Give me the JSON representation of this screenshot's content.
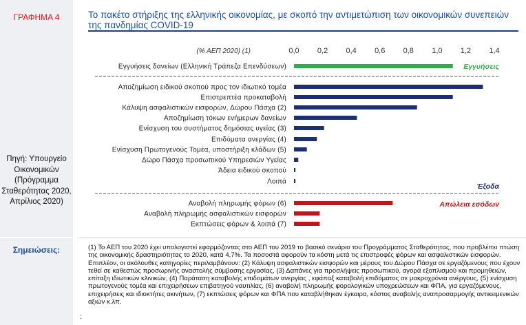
{
  "figure_label": "ΓΡΑΦΗΜΑ 4",
  "title": "Το πακέτο στήριξης της ελληνικής οικονομίας, με σκοπό την αντιμετώπιση των οικονομικών συνεπειών της πανδημίας COVID-19",
  "source": "Πηγή: Υπουργείο Οικονομικών (Πρόγραμμα Σταθερότητας 2020, Απρίλιος 2020)",
  "notes_label": "Σημειώσεις:",
  "notes": [
    "(1) Το ΑΕΠ του 2020 έχει υπολογιστεί εφαρμόζοντας στο ΑΕΠ του 2019 το βασικό σενάριο του Προγράμματος Σταθερότητας, που προβλέπει πτώση της οικονομικής δραστηριότητας το 2020, κατά 4,7%. Τα ποσοστά αφορούν τα κόστη μετά τις επιστροφές φόρων και ασφαλιστικών εισφορών.",
    "Επιπλέον, οι ακόλουθες κατηγορίες περιλαμβάνουν: (2) Κάλυψη ασφαλιστικών εισφορών και μέρους του Δώρου Πάσχα σε εργαζόμενους που έχουν τεθεί σε καθεστώς προσωρινής αναστολής σύμβασης εργασίας, (3) Δαπάνες για προσλήψεις προσωπικού, αγορά εξοπλισμού και προμηθειών, επίταξη ιδιωτικών κλινικών, (4) Παράταση καταβολής επιδομάτων ανεργίας , εφάπαξ καταβολή επιδόματος σε μακροχρόνια ανέργους, (5) ενίσχυση πρωτογενούς τομέα και επιχειρήσεων επιβατηγού ναυτιλίας, (6) αναβολή πληρωμής φορολογικών υποχρεώσεων και ΦΠΑ, για εργαζόμενους, επιχειρήσεις και ιδιοκτήτες ακινήτων, (7) εκπτώσεις φόρων και ΦΠΑ που καταβλήθηκαν έγκαιρα, κόστος αναβολής αναπροσαρμογής αντικειμενικών αξιών κ.λπ."
  ],
  "stray_char": ":",
  "colors": {
    "green": "#2ab04a",
    "navy": "#1c2f6e",
    "red": "#c2161d",
    "title_blue": "#1f4e9c"
  },
  "chart_data": {
    "type": "bar",
    "orientation": "horizontal",
    "unit_label": "(% ΑΕΠ 2020) (1)",
    "xlim": [
      0,
      1.4
    ],
    "ticks": [
      "0,0",
      "0,2",
      "0,4",
      "0,6",
      "0,8",
      "1,0",
      "1,2",
      "1,4"
    ],
    "groups": [
      {
        "name": "Εγγυήσεις",
        "color": "#2ab04a",
        "categories": [
          "Εγγυήσεις δανείων (Ελληνική Τράπεζα Επενδύσεων)"
        ],
        "values": [
          1.11
        ]
      },
      {
        "name": "Έξοδα",
        "color": "#1c2f6e",
        "categories": [
          "Αποζημίωση ειδικού σκοπού προς τον ιδιωτικό τομέα",
          "Επιστρεπτέα προκαταβολή",
          "Κάλυψη ασφαλιστικών εισφορών, Δώρου Πάσχα (2)",
          "Αποζημίωση τόκων ενήμερων δανείων",
          "Ενίσχυση του συστήματος δημόσιας υγείας (3)",
          "Επιδόματα ανεργίας (4)",
          "Ενίσχυση Πρωτογενούς Τομέα, υποστήριξη κλάδων (5)",
          "Δώρο Πάσχα προσωπικού Υπηρεσιών Υγείας",
          "Άδεια ειδικού σκοπού",
          "Λοιπά"
        ],
        "values": [
          1.32,
          1.11,
          0.86,
          0.44,
          0.21,
          0.16,
          0.09,
          0.03,
          0.01,
          0.01
        ]
      },
      {
        "name": "Απώλεια εσόδων",
        "color": "#c2161d",
        "categories": [
          "Αναβολή πληρωμής φόρων (6)",
          "Αναβολή πληρωμής ασφαλιστικών εισφορών",
          "Εκπτώσεις φόρων & λοιπά (7)"
        ],
        "values": [
          0.69,
          0.18,
          0.18
        ]
      }
    ]
  }
}
